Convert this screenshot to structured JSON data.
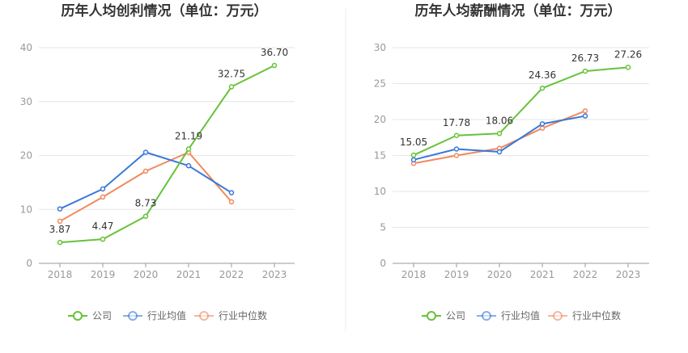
{
  "colors": {
    "company": "#67c23a",
    "industry_avg": "#3a78d8",
    "industry_median": "#f08a5d",
    "grid": "#e6e6e6",
    "axis": "#999999",
    "divider": "#eeeeee"
  },
  "legend": [
    "公司",
    "行业均值",
    "行业中位数"
  ],
  "chart_data": [
    {
      "type": "line",
      "title": "历年人均创利情况（单位：万元）",
      "x": [
        "2018",
        "2019",
        "2020",
        "2021",
        "2022",
        "2023"
      ],
      "ylim": [
        0,
        40
      ],
      "yticks": [
        0,
        10,
        20,
        30,
        40
      ],
      "grid": true,
      "legend_position": "bottom",
      "series": [
        {
          "name": "公司",
          "values": [
            3.87,
            4.47,
            8.73,
            21.19,
            32.75,
            36.7
          ],
          "labels": [
            "3.87",
            "4.47",
            "8.73",
            "21.19",
            "32.75",
            "36.70"
          ]
        },
        {
          "name": "行业均值",
          "values": [
            10.1,
            13.8,
            20.6,
            18.1,
            13.1,
            null
          ]
        },
        {
          "name": "行业中位数",
          "values": [
            7.8,
            12.3,
            17.1,
            20.6,
            11.4,
            null
          ]
        }
      ]
    },
    {
      "type": "line",
      "title": "历年人均薪酬情况（单位：万元）",
      "x": [
        "2018",
        "2019",
        "2020",
        "2021",
        "2022",
        "2023"
      ],
      "ylim": [
        0,
        30
      ],
      "yticks": [
        0,
        5,
        10,
        15,
        20,
        25,
        30
      ],
      "grid": true,
      "legend_position": "bottom",
      "series": [
        {
          "name": "公司",
          "values": [
            15.05,
            17.78,
            18.06,
            24.36,
            26.73,
            27.26
          ],
          "labels": [
            "15.05",
            "17.78",
            "18.06",
            "24.36",
            "26.73",
            "27.26"
          ]
        },
        {
          "name": "行业均值",
          "values": [
            14.4,
            15.9,
            15.5,
            19.4,
            20.5,
            null
          ]
        },
        {
          "name": "行业中位数",
          "values": [
            13.9,
            15.0,
            16.0,
            18.8,
            21.2,
            null
          ]
        }
      ]
    }
  ]
}
